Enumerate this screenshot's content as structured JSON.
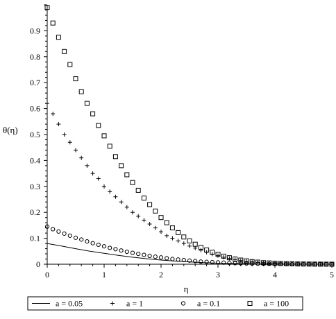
{
  "chart_data": {
    "type": "scatter",
    "title": "",
    "xlabel": "η",
    "ylabel": "θ(η)",
    "xlim": [
      0,
      5
    ],
    "ylim": [
      0,
      1
    ],
    "xticks": [
      "0",
      "1",
      "2",
      "3",
      "4",
      "5"
    ],
    "yticks": [
      "0",
      "0.1",
      "0.2",
      "0.3",
      "0.4",
      "0.5",
      "0.6",
      "0.7",
      "0.8",
      "0.9"
    ],
    "grid": false,
    "legend_position": "bottom",
    "series": [
      {
        "name": "a = 0.05",
        "marker": "line",
        "x": [
          0,
          0.25,
          0.5,
          0.75,
          1,
          1.25,
          1.5,
          1.75,
          2,
          2.25,
          2.5,
          2.75,
          3,
          3.25,
          3.5,
          3.75,
          4,
          4.25,
          4.5,
          4.75,
          5
        ],
        "y": [
          0.08,
          0.07,
          0.06,
          0.05,
          0.042,
          0.034,
          0.027,
          0.021,
          0.016,
          0.012,
          0.009,
          0.006,
          0.004,
          0.003,
          0.002,
          0.0012,
          0.0007,
          0.0004,
          0.0002,
          0.0001,
          0.0
        ]
      },
      {
        "name": "a = 1",
        "marker": "+",
        "x": [
          0,
          0.1,
          0.2,
          0.3,
          0.4,
          0.5,
          0.6,
          0.7,
          0.8,
          0.9,
          1.0,
          1.1,
          1.2,
          1.3,
          1.4,
          1.5,
          1.6,
          1.7,
          1.8,
          1.9,
          2.0,
          2.1,
          2.2,
          2.3,
          2.4,
          2.5,
          2.6,
          2.7,
          2.8,
          2.9,
          3.0,
          3.1,
          3.2,
          3.3,
          3.4,
          3.5,
          3.6,
          3.7,
          3.8,
          3.9,
          4.0,
          4.1,
          4.2,
          4.3,
          4.4,
          4.5,
          4.6,
          4.7,
          4.8,
          4.9,
          5.0
        ],
        "y": [
          0.62,
          0.58,
          0.54,
          0.5,
          0.47,
          0.44,
          0.41,
          0.38,
          0.35,
          0.33,
          0.3,
          0.28,
          0.26,
          0.24,
          0.22,
          0.2,
          0.185,
          0.17,
          0.155,
          0.14,
          0.125,
          0.11,
          0.1,
          0.09,
          0.08,
          0.07,
          0.062,
          0.054,
          0.046,
          0.039,
          0.033,
          0.027,
          0.022,
          0.018,
          0.014,
          0.011,
          0.009,
          0.007,
          0.005,
          0.004,
          0.003,
          0.002,
          0.0015,
          0.001,
          0.0008,
          0.0006,
          0.0004,
          0.0003,
          0.0002,
          0.0001,
          0.0
        ]
      },
      {
        "name": "a = 0.1",
        "marker": "o",
        "x": [
          0,
          0.1,
          0.2,
          0.3,
          0.4,
          0.5,
          0.6,
          0.7,
          0.8,
          0.9,
          1.0,
          1.1,
          1.2,
          1.3,
          1.4,
          1.5,
          1.6,
          1.7,
          1.8,
          1.9,
          2.0,
          2.1,
          2.2,
          2.3,
          2.4,
          2.5,
          2.6,
          2.7,
          2.8,
          2.9,
          3.0,
          3.1,
          3.2,
          3.3,
          3.4,
          3.5,
          3.6,
          3.7,
          3.8,
          3.9,
          4.0,
          4.1,
          4.2,
          4.3,
          4.4,
          4.5,
          4.6,
          4.7,
          4.8,
          4.9,
          5.0
        ],
        "y": [
          0.145,
          0.135,
          0.126,
          0.118,
          0.11,
          0.102,
          0.095,
          0.088,
          0.081,
          0.075,
          0.069,
          0.063,
          0.058,
          0.053,
          0.048,
          0.044,
          0.04,
          0.036,
          0.032,
          0.029,
          0.026,
          0.023,
          0.02,
          0.018,
          0.016,
          0.014,
          0.012,
          0.01,
          0.009,
          0.008,
          0.007,
          0.006,
          0.005,
          0.004,
          0.0035,
          0.003,
          0.0025,
          0.002,
          0.0016,
          0.0013,
          0.001,
          0.0008,
          0.0006,
          0.0005,
          0.0004,
          0.0003,
          0.0002,
          0.0002,
          0.0001,
          0.0001,
          0.0
        ]
      },
      {
        "name": "a = 100",
        "marker": "square",
        "x": [
          0,
          0.1,
          0.2,
          0.3,
          0.4,
          0.5,
          0.6,
          0.7,
          0.8,
          0.9,
          1.0,
          1.1,
          1.2,
          1.3,
          1.4,
          1.5,
          1.6,
          1.7,
          1.8,
          1.9,
          2.0,
          2.1,
          2.2,
          2.3,
          2.4,
          2.5,
          2.6,
          2.7,
          2.8,
          2.9,
          3.0,
          3.1,
          3.2,
          3.3,
          3.4,
          3.5,
          3.6,
          3.7,
          3.8,
          3.9,
          4.0,
          4.1,
          4.2,
          4.3,
          4.4,
          4.5,
          4.6,
          4.7,
          4.8,
          4.9,
          5.0
        ],
        "y": [
          0.99,
          0.93,
          0.875,
          0.82,
          0.77,
          0.715,
          0.665,
          0.62,
          0.58,
          0.535,
          0.495,
          0.455,
          0.415,
          0.38,
          0.345,
          0.315,
          0.285,
          0.255,
          0.23,
          0.205,
          0.18,
          0.16,
          0.14,
          0.122,
          0.105,
          0.09,
          0.077,
          0.065,
          0.055,
          0.046,
          0.038,
          0.031,
          0.025,
          0.02,
          0.016,
          0.013,
          0.01,
          0.008,
          0.006,
          0.005,
          0.004,
          0.003,
          0.002,
          0.0015,
          0.001,
          0.0008,
          0.0006,
          0.0004,
          0.0003,
          0.0002,
          0.0001
        ]
      }
    ]
  }
}
